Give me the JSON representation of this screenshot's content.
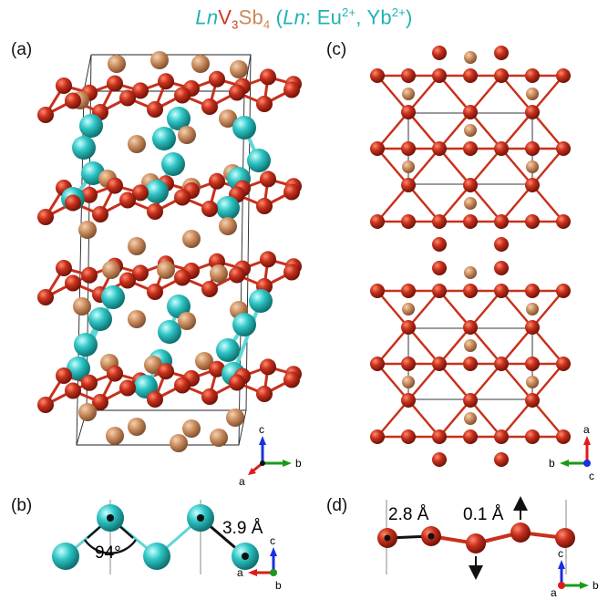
{
  "title": {
    "ln": "Ln",
    "v": "V",
    "v_sub": "3",
    "sb": "Sb",
    "sb_sub": "4",
    "paren_open": " (",
    "ln2": "Ln",
    "colon_text": ": Eu",
    "eu_sup": "2+",
    "comma_text": ", Yb",
    "yb_sup": "2+",
    "paren_close": ")"
  },
  "panels": {
    "a": "(a)",
    "b": "(b)",
    "c": "(c)",
    "d": "(d)"
  },
  "annotations": {
    "bond_length_b": "3.9 Å",
    "angle_b": "94°",
    "bond_length_d": "2.8 Å",
    "displacement_d": "0.1 Å"
  },
  "axes": {
    "a_panel": [
      "c",
      "a",
      "b"
    ],
    "b_panel": [
      "c",
      "a",
      "b"
    ],
    "c_panel": [
      "a",
      "b",
      "c"
    ],
    "d_panel": [
      "c",
      "a",
      "b"
    ]
  },
  "colors": {
    "ln_atom": "#2ec4c4",
    "v_atom": "#c8301c",
    "sb_atom": "#c9895a",
    "ln_bond": "#5fd6d6",
    "v_bond": "#c8301c",
    "axis_c": "#1a2fe0",
    "axis_a": "#e01a1a",
    "axis_b": "#1a9a1a"
  }
}
